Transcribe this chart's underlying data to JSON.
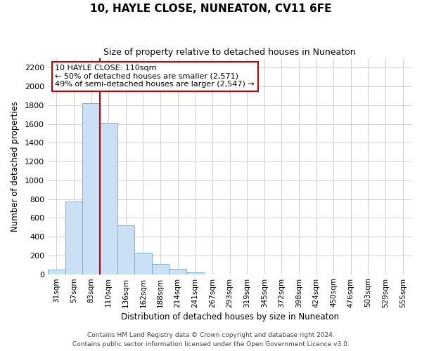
{
  "title_line1": "10, HAYLE CLOSE, NUNEATON, CV11 6FE",
  "title_line2": "Size of property relative to detached houses in Nuneaton",
  "xlabel": "Distribution of detached houses by size in Nuneaton",
  "ylabel": "Number of detached properties",
  "bar_labels": [
    "31sqm",
    "57sqm",
    "83sqm",
    "110sqm",
    "136sqm",
    "162sqm",
    "188sqm",
    "214sqm",
    "241sqm",
    "267sqm",
    "293sqm",
    "319sqm",
    "345sqm",
    "372sqm",
    "398sqm",
    "424sqm",
    "450sqm",
    "476sqm",
    "503sqm",
    "529sqm",
    "555sqm"
  ],
  "bar_heights": [
    50,
    775,
    1820,
    1615,
    520,
    230,
    110,
    55,
    20,
    0,
    0,
    0,
    0,
    0,
    0,
    0,
    0,
    0,
    0,
    0,
    0
  ],
  "bar_color": "#cce0f5",
  "bar_edge_color": "#7bafd4",
  "vline_color": "#cc0000",
  "vline_x_index": 3,
  "ylim": [
    0,
    2300
  ],
  "yticks": [
    0,
    200,
    400,
    600,
    800,
    1000,
    1200,
    1400,
    1600,
    1800,
    2000,
    2200
  ],
  "annotation_title": "10 HAYLE CLOSE: 110sqm",
  "annotation_line1": "← 50% of detached houses are smaller (2,571)",
  "annotation_line2": "49% of semi-detached houses are larger (2,547) →",
  "annotation_box_color": "#ffffff",
  "annotation_box_edge": "#cc0000",
  "footer_line1": "Contains HM Land Registry data © Crown copyright and database right 2024.",
  "footer_line2": "Contains public sector information licensed under the Open Government Licence v3.0.",
  "figsize": [
    6.0,
    5.0
  ],
  "dpi": 100
}
